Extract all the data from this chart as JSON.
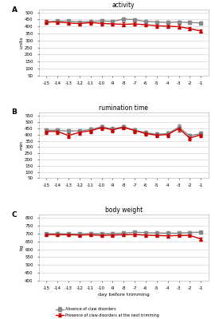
{
  "days": [
    -15,
    -14,
    -13,
    -12,
    -11,
    -10,
    -9,
    -8,
    -7,
    -6,
    -5,
    -4,
    -3,
    -2,
    -1
  ],
  "activity_absence": [
    430,
    438,
    438,
    432,
    435,
    440,
    435,
    453,
    448,
    435,
    432,
    428,
    432,
    428,
    425
  ],
  "activity_absence_err": [
    10,
    10,
    10,
    10,
    10,
    10,
    10,
    10,
    10,
    10,
    10,
    10,
    10,
    10,
    10
  ],
  "activity_presence": [
    432,
    432,
    425,
    420,
    428,
    422,
    418,
    415,
    418,
    412,
    405,
    402,
    398,
    385,
    368
  ],
  "activity_presence_err": [
    13,
    13,
    13,
    13,
    13,
    13,
    13,
    13,
    13,
    13,
    13,
    13,
    13,
    13,
    13
  ],
  "activity_ylim": [
    50,
    520
  ],
  "activity_yticks": [
    50,
    100,
    150,
    200,
    250,
    300,
    350,
    400,
    450,
    500
  ],
  "activity_ylabel": "units",
  "rumination_absence": [
    435,
    435,
    428,
    430,
    440,
    462,
    445,
    462,
    435,
    415,
    402,
    408,
    458,
    390,
    408
  ],
  "rumination_absence_err": [
    15,
    15,
    15,
    15,
    15,
    15,
    15,
    15,
    15,
    15,
    15,
    15,
    20,
    15,
    15
  ],
  "rumination_presence": [
    425,
    425,
    392,
    418,
    430,
    455,
    438,
    458,
    432,
    408,
    395,
    400,
    448,
    372,
    398
  ],
  "rumination_presence_err": [
    18,
    18,
    18,
    18,
    18,
    18,
    18,
    18,
    18,
    18,
    18,
    18,
    22,
    18,
    18
  ],
  "rumination_ylim": [
    50,
    580
  ],
  "rumination_yticks": [
    50,
    100,
    150,
    200,
    250,
    300,
    350,
    400,
    450,
    500,
    550
  ],
  "rumination_ylabel": "min",
  "bodyweight_absence": [
    698,
    699,
    697,
    697,
    700,
    698,
    700,
    702,
    708,
    705,
    703,
    702,
    702,
    706,
    708
  ],
  "bodyweight_absence_err": [
    8,
    8,
    8,
    8,
    8,
    8,
    8,
    8,
    8,
    8,
    8,
    8,
    8,
    8,
    8
  ],
  "bodyweight_presence": [
    693,
    692,
    692,
    690,
    692,
    688,
    690,
    692,
    694,
    689,
    687,
    685,
    687,
    688,
    665
  ],
  "bodyweight_presence_err": [
    10,
    10,
    10,
    10,
    10,
    10,
    10,
    10,
    10,
    10,
    10,
    10,
    10,
    10,
    10
  ],
  "bodyweight_ylim": [
    400,
    820
  ],
  "bodyweight_yticks": [
    400,
    450,
    500,
    550,
    600,
    650,
    700,
    750,
    800
  ],
  "bodyweight_ylabel": "kg",
  "color_absence": "#888888",
  "color_presence": "#cc0000",
  "marker_absence": "s",
  "marker_presence": "^",
  "markersize": 2.5,
  "linewidth": 1.0,
  "capsize": 1.5,
  "elinewidth": 0.7,
  "panel_labels": [
    "A",
    "B",
    "C"
  ],
  "panel_titles": [
    "activity",
    "rumination time",
    "body weight"
  ],
  "xlabel": "day before trimming",
  "legend_absence": "Absence of claw disorders",
  "legend_presence": "Presence of claw disorders at the next trimming",
  "bg_color": "#ffffff"
}
